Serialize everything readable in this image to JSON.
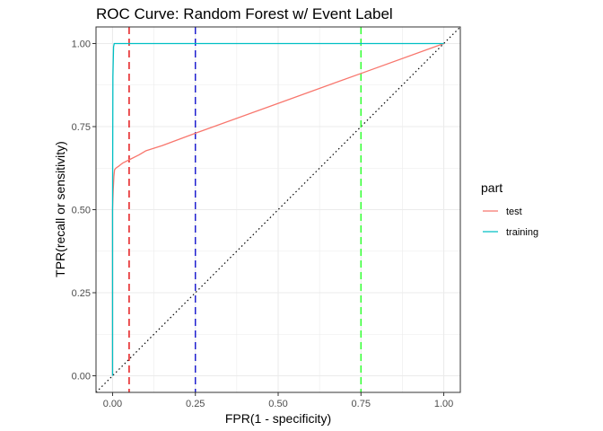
{
  "chart_data": {
    "type": "line",
    "title": "ROC Curve: Random Forest w/ Event Label",
    "xlabel": "FPR(1 - specificity)",
    "ylabel": "TPR(recall or sensitivity)",
    "xlim": [
      -0.05,
      1.05
    ],
    "ylim": [
      -0.05,
      1.05
    ],
    "x_ticks": [
      0.0,
      0.25,
      0.5,
      0.75,
      1.0
    ],
    "x_tick_labels": [
      "0.00",
      "0.25",
      "0.50",
      "0.75",
      "1.00"
    ],
    "y_ticks": [
      0.0,
      0.25,
      0.5,
      0.75,
      1.0
    ],
    "y_tick_labels": [
      "0.00",
      "0.25",
      "0.50",
      "0.75",
      "1.00"
    ],
    "grid": true,
    "legend": {
      "title": "part",
      "position": "right"
    },
    "series": [
      {
        "name": "test",
        "color": "#F8766D",
        "x": [
          0.0,
          0.0,
          0.002,
          0.004,
          0.006,
          0.01,
          0.02,
          0.03,
          0.05,
          0.08,
          0.1,
          0.15,
          0.25,
          0.5,
          0.75,
          1.0
        ],
        "y": [
          0.0,
          0.5,
          0.56,
          0.6,
          0.62,
          0.625,
          0.632,
          0.64,
          0.65,
          0.665,
          0.677,
          0.693,
          0.73,
          0.82,
          0.91,
          1.0
        ]
      },
      {
        "name": "training",
        "color": "#00BFC4",
        "x": [
          0.0,
          0.0,
          0.001,
          0.003,
          0.005,
          1.0
        ],
        "y": [
          0.0,
          0.5,
          0.9,
          0.99,
          1.0,
          1.0
        ]
      }
    ],
    "reference_lines": [
      {
        "type": "diagonal",
        "style": "dotted",
        "color": "#000000"
      },
      {
        "type": "vline",
        "x": 0.05,
        "style": "dashed",
        "color": "#e41a1c"
      },
      {
        "type": "vline",
        "x": 0.25,
        "style": "dashed",
        "color": "#1f1fcf"
      },
      {
        "type": "vline",
        "x": 0.75,
        "style": "dashed",
        "color": "#33ff33"
      }
    ]
  }
}
